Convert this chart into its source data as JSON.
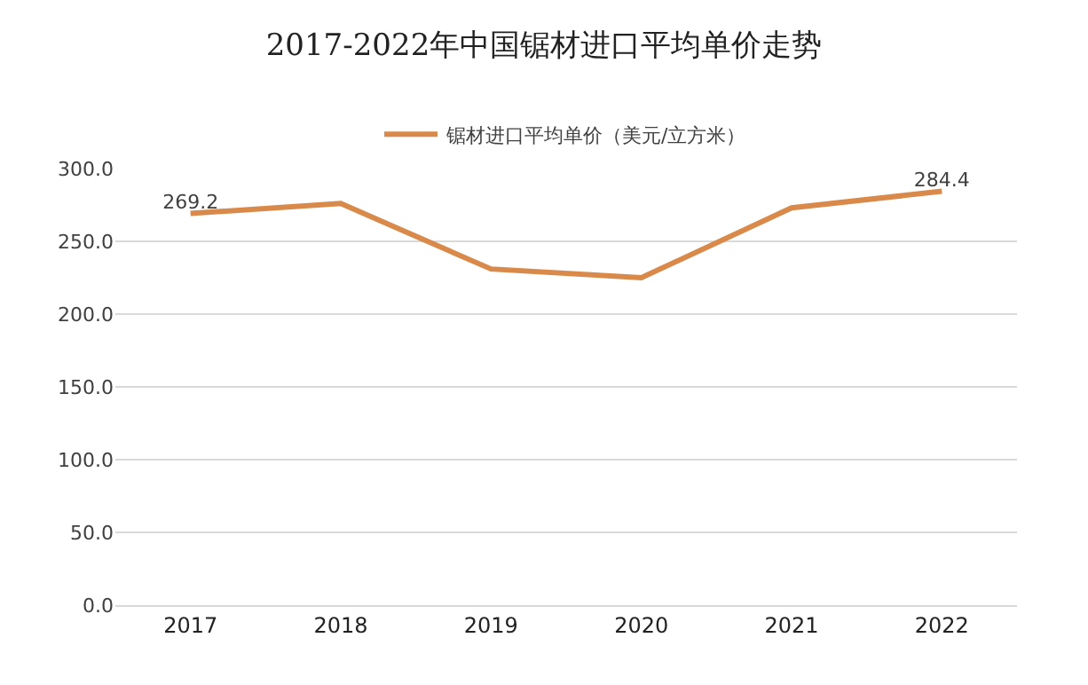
{
  "chart_data": {
    "type": "line",
    "title": "2017-2022年中国锯材进口平均单价走势",
    "categories": [
      "2017",
      "2018",
      "2019",
      "2020",
      "2021",
      "2022"
    ],
    "series": [
      {
        "name": "锯材进口平均单价（美元/立方米）",
        "color": "#d98a4b",
        "values": [
          269.2,
          276,
          231,
          225,
          273,
          284.4
        ],
        "value_labels": [
          "269.2",
          null,
          null,
          null,
          null,
          "284.4"
        ]
      }
    ],
    "ylim": [
      0,
      300
    ],
    "yticks": [
      {
        "value": 0,
        "label": "0.0"
      },
      {
        "value": 50,
        "label": "50.0"
      },
      {
        "value": 100,
        "label": "100.0"
      },
      {
        "value": 150,
        "label": "150.0"
      },
      {
        "value": 200,
        "label": "200.0"
      },
      {
        "value": 250,
        "label": "250.0"
      },
      {
        "value": 300,
        "label": "300.0"
      }
    ],
    "grid": "y",
    "legend": "top",
    "marker": "none",
    "line_style": "solid"
  }
}
